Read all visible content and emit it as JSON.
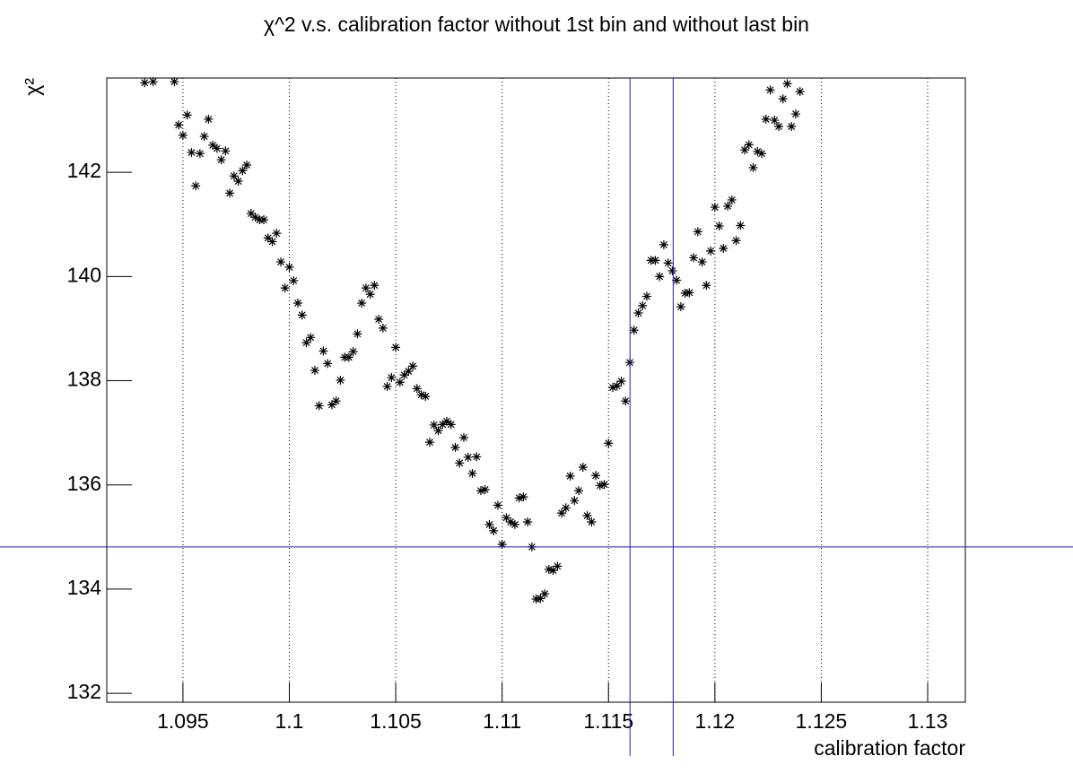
{
  "chart_data": {
    "type": "scatter",
    "title": "χ^2 v.s. calibration factor without 1st bin and without last bin",
    "xlabel": "calibration factor",
    "ylabel": "χ²",
    "xlim": [
      1.09142,
      1.13177
    ],
    "ylim": [
      131.83,
      143.81
    ],
    "xticks": [
      1.095,
      1.1,
      1.105,
      1.11,
      1.115,
      1.12,
      1.125,
      1.13
    ],
    "yticks": [
      132,
      134,
      136,
      138,
      140,
      142
    ],
    "xgrid": true,
    "ygrid": false,
    "color": "#000000",
    "ref_color": "#1c1cc8",
    "hlines": [
      134.81
    ],
    "vlines": [
      1.11601,
      1.11804
    ],
    "series": [
      {
        "color": "#000000",
        "x": [
          1.0932,
          1.0936,
          1.0946,
          1.0948,
          1.095,
          1.0952,
          1.0954,
          1.0956,
          1.0958,
          1.096,
          1.0962,
          1.0964,
          1.0966,
          1.0968,
          1.097,
          1.0972,
          1.0974,
          1.0976,
          1.0978,
          1.098,
          1.0982,
          1.0984,
          1.0986,
          1.0988,
          1.099,
          1.0992,
          1.0994,
          1.0996,
          1.0998,
          1.1,
          1.1002,
          1.1004,
          1.1006,
          1.1008,
          1.101,
          1.1012,
          1.1014,
          1.1016,
          1.1018,
          1.102,
          1.1022,
          1.1024,
          1.1026,
          1.1028,
          1.103,
          1.1032,
          1.1034,
          1.1036,
          1.1038,
          1.104,
          1.1042,
          1.1044,
          1.1046,
          1.1048,
          1.105,
          1.1052,
          1.1054,
          1.1056,
          1.1058,
          1.106,
          1.1062,
          1.1064,
          1.1066,
          1.1068,
          1.107,
          1.1072,
          1.1074,
          1.1076,
          1.1078,
          1.108,
          1.1082,
          1.1084,
          1.1086,
          1.1088,
          1.109,
          1.1092,
          1.1094,
          1.1096,
          1.1098,
          1.11,
          1.1102,
          1.1104,
          1.1106,
          1.1108,
          1.111,
          1.1112,
          1.1114,
          1.1116,
          1.1118,
          1.112,
          1.1122,
          1.1124,
          1.1126,
          1.1128,
          1.113,
          1.1132,
          1.1134,
          1.1136,
          1.1138,
          1.114,
          1.1142,
          1.1144,
          1.1146,
          1.1148,
          1.115,
          1.1152,
          1.1154,
          1.1156,
          1.1158,
          1.116,
          1.1162,
          1.1164,
          1.1166,
          1.1168,
          1.117,
          1.1172,
          1.1174,
          1.1176,
          1.1178,
          1.118,
          1.1182,
          1.1184,
          1.1186,
          1.1188,
          1.119,
          1.1192,
          1.1194,
          1.1196,
          1.1198,
          1.12,
          1.1202,
          1.1204,
          1.1206,
          1.1208,
          1.121,
          1.1212,
          1.1214,
          1.1216,
          1.1218,
          1.122,
          1.1222,
          1.1224,
          1.1226,
          1.1228,
          1.123,
          1.1232,
          1.1234,
          1.1236,
          1.1238,
          1.124
        ],
        "values": [
          143.72,
          143.74,
          143.74,
          142.91,
          142.71,
          143.1,
          142.38,
          141.74,
          142.36,
          142.69,
          143.02,
          142.52,
          142.46,
          142.24,
          142.41,
          141.6,
          141.93,
          141.83,
          142.03,
          142.14,
          141.21,
          141.14,
          141.09,
          141.09,
          140.74,
          140.67,
          140.83,
          140.28,
          139.78,
          140.18,
          139.92,
          139.49,
          139.26,
          138.73,
          138.83,
          138.2,
          137.52,
          138.57,
          138.33,
          137.54,
          137.61,
          138.01,
          138.45,
          138.45,
          138.56,
          138.9,
          139.49,
          139.78,
          139.66,
          139.83,
          139.18,
          139.01,
          137.89,
          138.06,
          138.64,
          137.97,
          138.11,
          138.18,
          138.28,
          137.85,
          137.73,
          137.7,
          136.82,
          137.15,
          137.04,
          137.16,
          137.22,
          137.16,
          136.72,
          136.42,
          136.91,
          136.53,
          136.22,
          136.54,
          135.89,
          135.91,
          135.24,
          135.12,
          135.61,
          134.86,
          135.37,
          135.29,
          135.24,
          135.75,
          135.77,
          135.29,
          134.81,
          133.81,
          133.82,
          133.91,
          134.38,
          134.36,
          134.44,
          135.46,
          135.56,
          136.17,
          135.7,
          135.89,
          136.34,
          135.41,
          135.29,
          136.18,
          135.99,
          136.01,
          136.8,
          137.87,
          137.9,
          137.99,
          137.61,
          138.35,
          138.97,
          139.3,
          139.44,
          139.62,
          140.31,
          140.31,
          140.0,
          140.61,
          140.26,
          140.11,
          139.93,
          139.42,
          139.68,
          139.69,
          140.36,
          140.86,
          140.28,
          139.83,
          140.49,
          141.33,
          140.97,
          140.54,
          141.35,
          141.47,
          140.69,
          140.98,
          142.43,
          142.53,
          142.09,
          142.4,
          142.36,
          143.02,
          143.58,
          143.0,
          142.88,
          143.41,
          143.7,
          142.88,
          143.12,
          143.55
        ]
      }
    ]
  }
}
